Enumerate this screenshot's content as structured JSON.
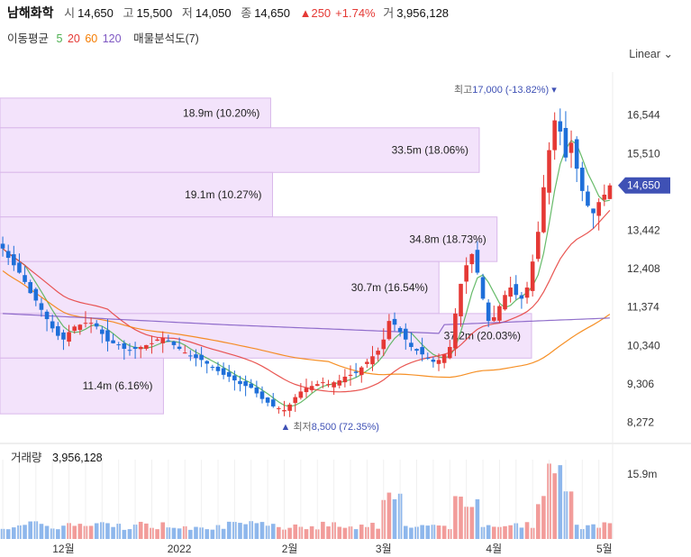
{
  "header": {
    "name": "남해화학",
    "open_label": "시",
    "open": "14,650",
    "high_label": "고",
    "high": "15,500",
    "low_label": "저",
    "low": "14,050",
    "close_label": "종",
    "close": "14,650",
    "change": "▲250",
    "change_pct": "+1.74%",
    "volume_label": "거",
    "volume": "3,956,128"
  },
  "ma_legend": {
    "title": "이동평균",
    "periods": [
      {
        "label": "5",
        "color": "#4caf50"
      },
      {
        "label": "20",
        "color": "#e53935"
      },
      {
        "label": "60",
        "color": "#f57c00"
      },
      {
        "label": "120",
        "color": "#7e57c2"
      }
    ],
    "profile_label": "매물분석도(7)"
  },
  "scale_label": "Linear",
  "colors": {
    "up": "#e53935",
    "down": "#1e6fd9",
    "profile": "#f3e3fb",
    "profile_border": "#d9b8ea",
    "price_tag": "#3f51b5"
  },
  "chart_data": [
    {
      "type": "candlestick",
      "y_ticks": [
        8272,
        9306,
        10340,
        11374,
        12408,
        13442,
        14476,
        15510,
        16544
      ],
      "y_tick_labels": [
        "8,272",
        "9,306",
        "10,340",
        "11,374",
        "12,408",
        "13,442",
        "",
        "15,510",
        "16,544"
      ],
      "ylim": [
        7800,
        17700
      ],
      "x_tick_labels": [
        {
          "label": "12월",
          "idx": 11
        },
        {
          "label": "2022",
          "idx": 32
        },
        {
          "label": "2월",
          "idx": 52
        },
        {
          "label": "3월",
          "idx": 69
        },
        {
          "label": "4월",
          "idx": 89
        },
        {
          "label": "5월",
          "idx": 109
        }
      ],
      "last_price": 14650,
      "last_price_label": "14,650",
      "max_marker": {
        "label": "최고",
        "value_text": "17,000 (-13.82%)",
        "price": 17000,
        "idx": 101
      },
      "min_marker": {
        "label": "최저",
        "value_text": "8,500 (72.35%)",
        "price": 8500,
        "idx": 51
      },
      "close": [
        12950,
        12700,
        12500,
        12300,
        12050,
        11750,
        11550,
        11300,
        11050,
        10800,
        10600,
        10500,
        10700,
        10850,
        10900,
        10950,
        10950,
        10850,
        10650,
        10450,
        10400,
        10350,
        10250,
        10200,
        10250,
        10300,
        10350,
        10400,
        10500,
        10550,
        10450,
        10350,
        10250,
        10150,
        10050,
        10000,
        9950,
        9850,
        9750,
        9650,
        9550,
        9500,
        9400,
        9300,
        9250,
        9200,
        9050,
        8900,
        8800,
        8700,
        8650,
        8600,
        8750,
        8950,
        9100,
        9200,
        9250,
        9300,
        9350,
        9300,
        9350,
        9400,
        9500,
        9550,
        9600,
        9750,
        9900,
        10050,
        10200,
        10500,
        11000,
        10900,
        10700,
        10500,
        10300,
        10200,
        10100,
        10000,
        9900,
        9950,
        10100,
        10300,
        11200,
        12000,
        12500,
        12800,
        12300,
        11600,
        11000,
        11100,
        11400,
        11700,
        11900,
        11700,
        11600,
        11900,
        12600,
        13400,
        14600,
        15600,
        16400,
        16100,
        15400,
        15800,
        15100,
        14500,
        14100,
        13900,
        14200,
        14400,
        14650
      ],
      "volume_axis_label": "15.9m",
      "volume_axis_value": 15900000,
      "volume_title": "거래량",
      "volume_value": "3,956,128",
      "volume_profile": [
        {
          "label": "18.9m (10.20%)",
          "low": 16200,
          "high": 17000,
          "share": 10.2
        },
        {
          "label": "33.5m (18.06%)",
          "low": 15000,
          "high": 16200,
          "share": 18.06
        },
        {
          "label": "19.1m (10.27%)",
          "low": 13800,
          "high": 15000,
          "share": 10.27
        },
        {
          "label": "34.8m (18.73%)",
          "low": 12600,
          "high": 13800,
          "share": 18.73
        },
        {
          "label": "30.7m (16.54%)",
          "low": 11200,
          "high": 12600,
          "share": 16.54
        },
        {
          "label": "37.2m (20.03%)",
          "low": 10000,
          "high": 11200,
          "share": 20.03
        },
        {
          "label": "11.4m (6.16%)",
          "low": 8500,
          "high": 10000,
          "share": 6.16
        }
      ]
    }
  ]
}
